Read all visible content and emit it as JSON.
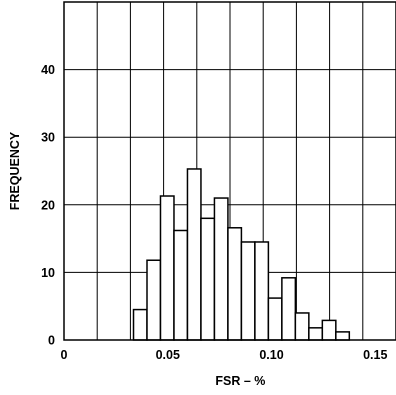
{
  "chart_data": {
    "type": "bar",
    "subtype": "histogram",
    "xlabel": "FSR – %",
    "ylabel": "FREQUENCY",
    "xlim": [
      0,
      0.16
    ],
    "ylim": [
      0,
      50
    ],
    "x_ticks": [
      {
        "value": 0,
        "label": "0"
      },
      {
        "value": 0.05,
        "label": "0.05"
      },
      {
        "value": 0.1,
        "label": "0.10"
      },
      {
        "value": 0.15,
        "label": "0.15"
      }
    ],
    "y_ticks": [
      {
        "value": 0,
        "label": "0"
      },
      {
        "value": 10,
        "label": "10"
      },
      {
        "value": 20,
        "label": "20"
      },
      {
        "value": 30,
        "label": "30"
      },
      {
        "value": 40,
        "label": "40"
      }
    ],
    "grid": true,
    "bin_width": 0.0065,
    "bins": [
      {
        "x0": 0.0335,
        "value": 4.5
      },
      {
        "x0": 0.04,
        "value": 11.8
      },
      {
        "x0": 0.0465,
        "value": 21.3
      },
      {
        "x0": 0.053,
        "value": 16.2
      },
      {
        "x0": 0.0595,
        "value": 25.3
      },
      {
        "x0": 0.066,
        "value": 18.0
      },
      {
        "x0": 0.0725,
        "value": 21.0
      },
      {
        "x0": 0.079,
        "value": 16.6
      },
      {
        "x0": 0.0855,
        "value": 14.5
      },
      {
        "x0": 0.092,
        "value": 14.5
      },
      {
        "x0": 0.0985,
        "value": 6.2
      },
      {
        "x0": 0.105,
        "value": 9.2
      },
      {
        "x0": 0.1115,
        "value": 4.0
      },
      {
        "x0": 0.118,
        "value": 1.8
      },
      {
        "x0": 0.1245,
        "value": 2.9
      },
      {
        "x0": 0.131,
        "value": 1.2
      }
    ]
  }
}
